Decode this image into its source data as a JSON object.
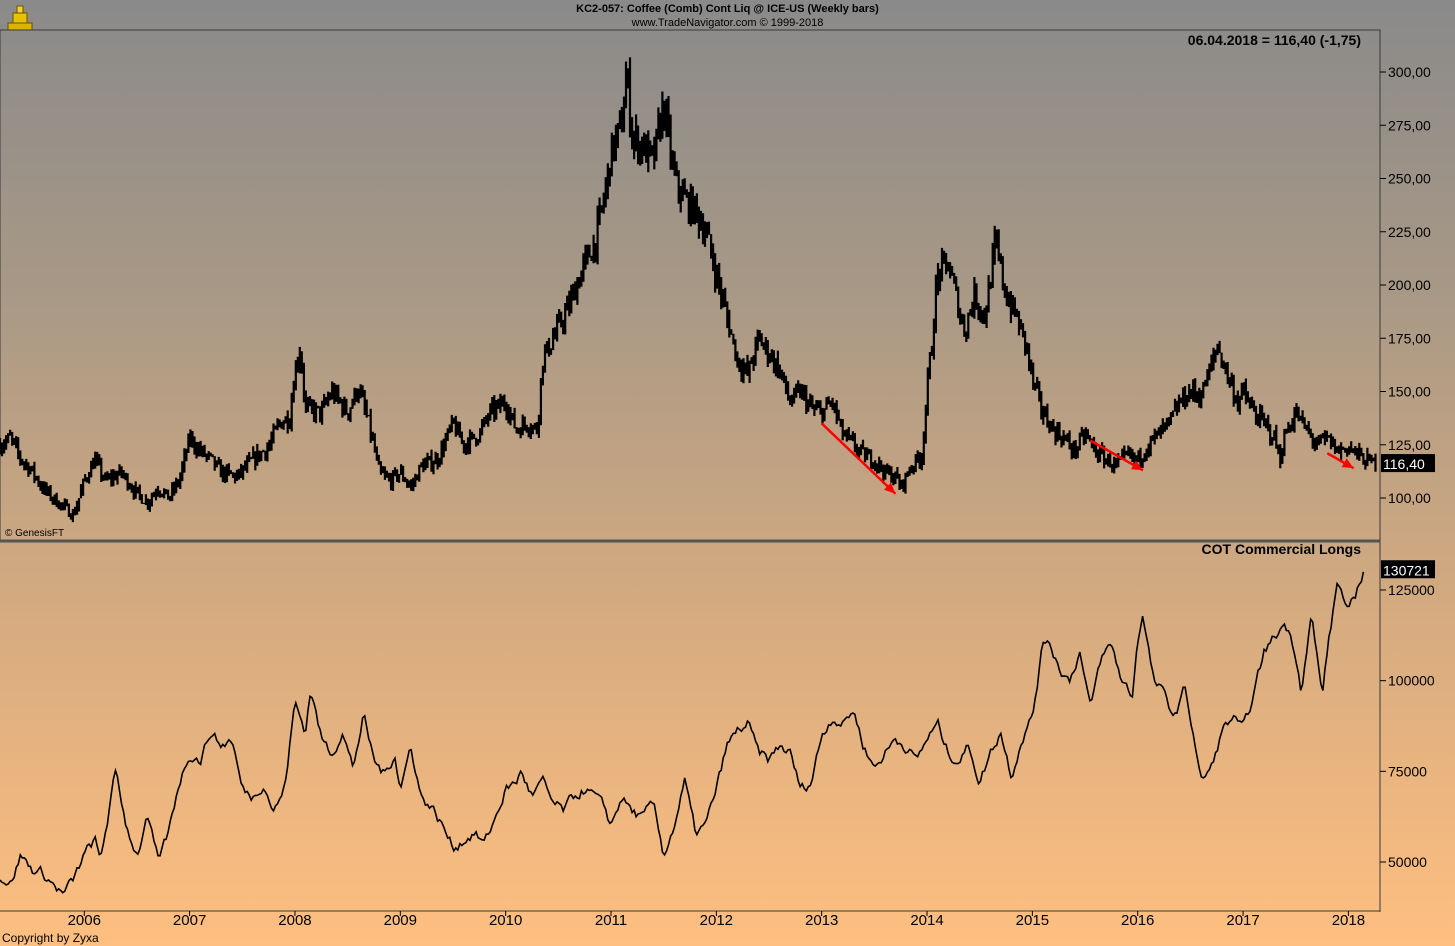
{
  "header": {
    "title": "KC2-057:  Coffee (Comb) Cont Liq @ ICE-US  (Weekly bars)",
    "subtitle": "www.TradeNavigator.com © 1999-2018"
  },
  "readout": "06.04.2018 = 116,40 (-1,75)",
  "genesis_label": "© GenesisFT",
  "copyright": "Copyright by Zyxa",
  "colors": {
    "price": "#000000",
    "cot": "#000000",
    "arrow": "#ff0000",
    "label_bg": "#000000",
    "label_fg": "#ffffff"
  },
  "chart_data": [
    {
      "type": "bar",
      "name": "price-panel",
      "title": "",
      "ylim": [
        85,
        310
      ],
      "yticks": [
        "100,00",
        "125,00",
        "150,00",
        "175,00",
        "200,00",
        "225,00",
        "250,00",
        "275,00",
        "300,00"
      ],
      "ytick_values": [
        100,
        125,
        150,
        175,
        200,
        225,
        250,
        275,
        300
      ],
      "xlim": [
        2005.2,
        2018.3
      ],
      "x_tick_labels": [
        "2006",
        "2007",
        "2008",
        "2009",
        "2010",
        "2011",
        "2012",
        "2013",
        "2014",
        "2015",
        "2016",
        "2017",
        "2018"
      ],
      "x_tick_values": [
        2006,
        2007,
        2008,
        2009,
        2010,
        2011,
        2012,
        2013,
        2014,
        2015,
        2016,
        2017,
        2018
      ],
      "last_value": 116.4,
      "last_value_label": "116,40",
      "series_points": [
        [
          2005.2,
          125
        ],
        [
          2005.3,
          128
        ],
        [
          2005.4,
          118
        ],
        [
          2005.5,
          113
        ],
        [
          2005.6,
          105
        ],
        [
          2005.7,
          100
        ],
        [
          2005.8,
          96
        ],
        [
          2005.9,
          92
        ],
        [
          2006.0,
          108
        ],
        [
          2006.1,
          118
        ],
        [
          2006.2,
          108
        ],
        [
          2006.35,
          112
        ],
        [
          2006.5,
          102
        ],
        [
          2006.6,
          98
        ],
        [
          2006.7,
          105
        ],
        [
          2006.8,
          100
        ],
        [
          2006.9,
          108
        ],
        [
          2007.0,
          128
        ],
        [
          2007.1,
          122
        ],
        [
          2007.2,
          118
        ],
        [
          2007.3,
          112
        ],
        [
          2007.45,
          110
        ],
        [
          2007.6,
          118
        ],
        [
          2007.75,
          124
        ],
        [
          2007.85,
          135
        ],
        [
          2007.95,
          138
        ],
        [
          2008.0,
          160
        ],
        [
          2008.05,
          170
        ],
        [
          2008.1,
          142
        ],
        [
          2008.25,
          140
        ],
        [
          2008.35,
          150
        ],
        [
          2008.5,
          140
        ],
        [
          2008.6,
          152
        ],
        [
          2008.7,
          135
        ],
        [
          2008.8,
          112
        ],
        [
          2008.9,
          108
        ],
        [
          2009.0,
          112
        ],
        [
          2009.1,
          105
        ],
        [
          2009.2,
          115
        ],
        [
          2009.35,
          118
        ],
        [
          2009.5,
          135
        ],
        [
          2009.6,
          125
        ],
        [
          2009.75,
          130
        ],
        [
          2009.85,
          140
        ],
        [
          2010.0,
          145
        ],
        [
          2010.1,
          132
        ],
        [
          2010.2,
          135
        ],
        [
          2010.3,
          132
        ],
        [
          2010.35,
          165
        ],
        [
          2010.5,
          180
        ],
        [
          2010.6,
          190
        ],
        [
          2010.75,
          210
        ],
        [
          2010.85,
          220
        ],
        [
          2010.95,
          245
        ],
        [
          2011.0,
          262
        ],
        [
          2011.1,
          275
        ],
        [
          2011.15,
          300
        ],
        [
          2011.2,
          270
        ],
        [
          2011.3,
          265
        ],
        [
          2011.4,
          258
        ],
        [
          2011.5,
          285
        ],
        [
          2011.6,
          250
        ],
        [
          2011.7,
          240
        ],
        [
          2011.8,
          235
        ],
        [
          2011.9,
          225
        ],
        [
          2012.0,
          205
        ],
        [
          2012.1,
          185
        ],
        [
          2012.2,
          165
        ],
        [
          2012.3,
          158
        ],
        [
          2012.4,
          175
        ],
        [
          2012.5,
          168
        ],
        [
          2012.6,
          160
        ],
        [
          2012.7,
          145
        ],
        [
          2012.8,
          150
        ],
        [
          2012.9,
          142
        ],
        [
          2013.0,
          140
        ],
        [
          2013.1,
          145
        ],
        [
          2013.2,
          130
        ],
        [
          2013.3,
          125
        ],
        [
          2013.4,
          120
        ],
        [
          2013.5,
          118
        ],
        [
          2013.6,
          112
        ],
        [
          2013.7,
          110
        ],
        [
          2013.75,
          105
        ],
        [
          2013.85,
          115
        ],
        [
          2013.95,
          120
        ],
        [
          2014.0,
          150
        ],
        [
          2014.05,
          175
        ],
        [
          2014.1,
          205
        ],
        [
          2014.2,
          210
        ],
        [
          2014.3,
          190
        ],
        [
          2014.35,
          178
        ],
        [
          2014.45,
          195
        ],
        [
          2014.55,
          185
        ],
        [
          2014.65,
          220
        ],
        [
          2014.75,
          195
        ],
        [
          2014.85,
          185
        ],
        [
          2014.95,
          170
        ],
        [
          2015.0,
          155
        ],
        [
          2015.1,
          140
        ],
        [
          2015.2,
          132
        ],
        [
          2015.3,
          128
        ],
        [
          2015.4,
          122
        ],
        [
          2015.5,
          130
        ],
        [
          2015.6,
          122
        ],
        [
          2015.7,
          118
        ],
        [
          2015.8,
          115
        ],
        [
          2015.9,
          120
        ],
        [
          2016.0,
          118
        ],
        [
          2016.1,
          125
        ],
        [
          2016.2,
          130
        ],
        [
          2016.3,
          135
        ],
        [
          2016.4,
          145
        ],
        [
          2016.5,
          150
        ],
        [
          2016.6,
          148
        ],
        [
          2016.7,
          162
        ],
        [
          2016.75,
          172
        ],
        [
          2016.85,
          158
        ],
        [
          2016.95,
          145
        ],
        [
          2017.0,
          150
        ],
        [
          2017.1,
          140
        ],
        [
          2017.2,
          135
        ],
        [
          2017.3,
          128
        ],
        [
          2017.35,
          118
        ],
        [
          2017.4,
          130
        ],
        [
          2017.5,
          140
        ],
        [
          2017.6,
          132
        ],
        [
          2017.7,
          125
        ],
        [
          2017.8,
          128
        ],
        [
          2017.9,
          122
        ],
        [
          2018.0,
          124
        ],
        [
          2018.1,
          120
        ],
        [
          2018.15,
          118
        ],
        [
          2018.25,
          116.4
        ]
      ],
      "arrows": [
        {
          "from": [
            2013.0,
            135
          ],
          "to": [
            2013.7,
            102
          ]
        },
        {
          "from": [
            2015.55,
            127
          ],
          "to": [
            2016.05,
            113
          ]
        },
        {
          "from": [
            2017.8,
            121
          ],
          "to": [
            2018.05,
            114
          ]
        }
      ]
    },
    {
      "type": "line",
      "name": "cot-panel",
      "title": "COT Commercial Longs",
      "ylim": [
        40000,
        135000
      ],
      "ytick_labels": [
        "50000",
        "75000",
        "100000",
        "125000"
      ],
      "ytick_values": [
        50000,
        75000,
        100000,
        125000
      ],
      "last_value": 130721,
      "last_value_label": "130721",
      "series_points": [
        [
          2005.2,
          46000
        ],
        [
          2005.3,
          44000
        ],
        [
          2005.4,
          52000
        ],
        [
          2005.5,
          48000
        ],
        [
          2005.6,
          47000
        ],
        [
          2005.7,
          44000
        ],
        [
          2005.8,
          41000
        ],
        [
          2005.9,
          45000
        ],
        [
          2006.0,
          52000
        ],
        [
          2006.1,
          56000
        ],
        [
          2006.15,
          50000
        ],
        [
          2006.3,
          75000
        ],
        [
          2006.4,
          60000
        ],
        [
          2006.5,
          52000
        ],
        [
          2006.6,
          62000
        ],
        [
          2006.7,
          50000
        ],
        [
          2006.8,
          58000
        ],
        [
          2006.9,
          72000
        ],
        [
          2007.0,
          80000
        ],
        [
          2007.1,
          78000
        ],
        [
          2007.2,
          86000
        ],
        [
          2007.3,
          82000
        ],
        [
          2007.4,
          84000
        ],
        [
          2007.5,
          70000
        ],
        [
          2007.6,
          68000
        ],
        [
          2007.7,
          72000
        ],
        [
          2007.8,
          64000
        ],
        [
          2007.9,
          70000
        ],
        [
          2008.0,
          94000
        ],
        [
          2008.1,
          86000
        ],
        [
          2008.15,
          98000
        ],
        [
          2008.25,
          84000
        ],
        [
          2008.35,
          80000
        ],
        [
          2008.45,
          86000
        ],
        [
          2008.55,
          76000
        ],
        [
          2008.65,
          90000
        ],
        [
          2008.75,
          78000
        ],
        [
          2008.85,
          74000
        ],
        [
          2008.95,
          80000
        ],
        [
          2009.0,
          70000
        ],
        [
          2009.1,
          82000
        ],
        [
          2009.2,
          68000
        ],
        [
          2009.3,
          65000
        ],
        [
          2009.4,
          60000
        ],
        [
          2009.5,
          54000
        ],
        [
          2009.6,
          56000
        ],
        [
          2009.7,
          58000
        ],
        [
          2009.8,
          55000
        ],
        [
          2009.9,
          62000
        ],
        [
          2010.0,
          70000
        ],
        [
          2010.1,
          72000
        ],
        [
          2010.15,
          75000
        ],
        [
          2010.25,
          68000
        ],
        [
          2010.35,
          72000
        ],
        [
          2010.45,
          66000
        ],
        [
          2010.55,
          64000
        ],
        [
          2010.65,
          68000
        ],
        [
          2010.75,
          70000
        ],
        [
          2010.85,
          68000
        ],
        [
          2010.95,
          64000
        ],
        [
          2011.0,
          60000
        ],
        [
          2011.1,
          68000
        ],
        [
          2011.2,
          64000
        ],
        [
          2011.3,
          62000
        ],
        [
          2011.4,
          66000
        ],
        [
          2011.5,
          52000
        ],
        [
          2011.6,
          60000
        ],
        [
          2011.7,
          72000
        ],
        [
          2011.8,
          58000
        ],
        [
          2011.9,
          60000
        ],
        [
          2012.0,
          70000
        ],
        [
          2012.1,
          82000
        ],
        [
          2012.2,
          86000
        ],
        [
          2012.3,
          88000
        ],
        [
          2012.4,
          80000
        ],
        [
          2012.5,
          78000
        ],
        [
          2012.6,
          82000
        ],
        [
          2012.7,
          80000
        ],
        [
          2012.8,
          70000
        ],
        [
          2012.9,
          72000
        ],
        [
          2013.0,
          85000
        ],
        [
          2013.1,
          90000
        ],
        [
          2013.2,
          88000
        ],
        [
          2013.3,
          92000
        ],
        [
          2013.4,
          82000
        ],
        [
          2013.5,
          76000
        ],
        [
          2013.6,
          80000
        ],
        [
          2013.7,
          84000
        ],
        [
          2013.8,
          82000
        ],
        [
          2013.9,
          78000
        ],
        [
          2014.0,
          84000
        ],
        [
          2014.1,
          88000
        ],
        [
          2014.2,
          80000
        ],
        [
          2014.3,
          78000
        ],
        [
          2014.4,
          82000
        ],
        [
          2014.5,
          72000
        ],
        [
          2014.6,
          80000
        ],
        [
          2014.7,
          86000
        ],
        [
          2014.8,
          74000
        ],
        [
          2014.9,
          84000
        ],
        [
          2015.0,
          90000
        ],
        [
          2015.1,
          110000
        ],
        [
          2015.15,
          112000
        ],
        [
          2015.25,
          104000
        ],
        [
          2015.35,
          100000
        ],
        [
          2015.45,
          108000
        ],
        [
          2015.55,
          92000
        ],
        [
          2015.65,
          106000
        ],
        [
          2015.75,
          110000
        ],
        [
          2015.85,
          100000
        ],
        [
          2015.95,
          96000
        ],
        [
          2016.0,
          112000
        ],
        [
          2016.05,
          118000
        ],
        [
          2016.15,
          100000
        ],
        [
          2016.25,
          96000
        ],
        [
          2016.35,
          90000
        ],
        [
          2016.45,
          98000
        ],
        [
          2016.55,
          82000
        ],
        [
          2016.6,
          72000
        ],
        [
          2016.7,
          76000
        ],
        [
          2016.8,
          86000
        ],
        [
          2016.9,
          90000
        ],
        [
          2017.0,
          86000
        ],
        [
          2017.1,
          96000
        ],
        [
          2017.2,
          108000
        ],
        [
          2017.3,
          112000
        ],
        [
          2017.4,
          116000
        ],
        [
          2017.5,
          108000
        ],
        [
          2017.55,
          98000
        ],
        [
          2017.65,
          118000
        ],
        [
          2017.75,
          96000
        ],
        [
          2017.8,
          108000
        ],
        [
          2017.9,
          128000
        ],
        [
          2018.0,
          118000
        ],
        [
          2018.1,
          126000
        ],
        [
          2018.15,
          130721
        ]
      ]
    }
  ]
}
